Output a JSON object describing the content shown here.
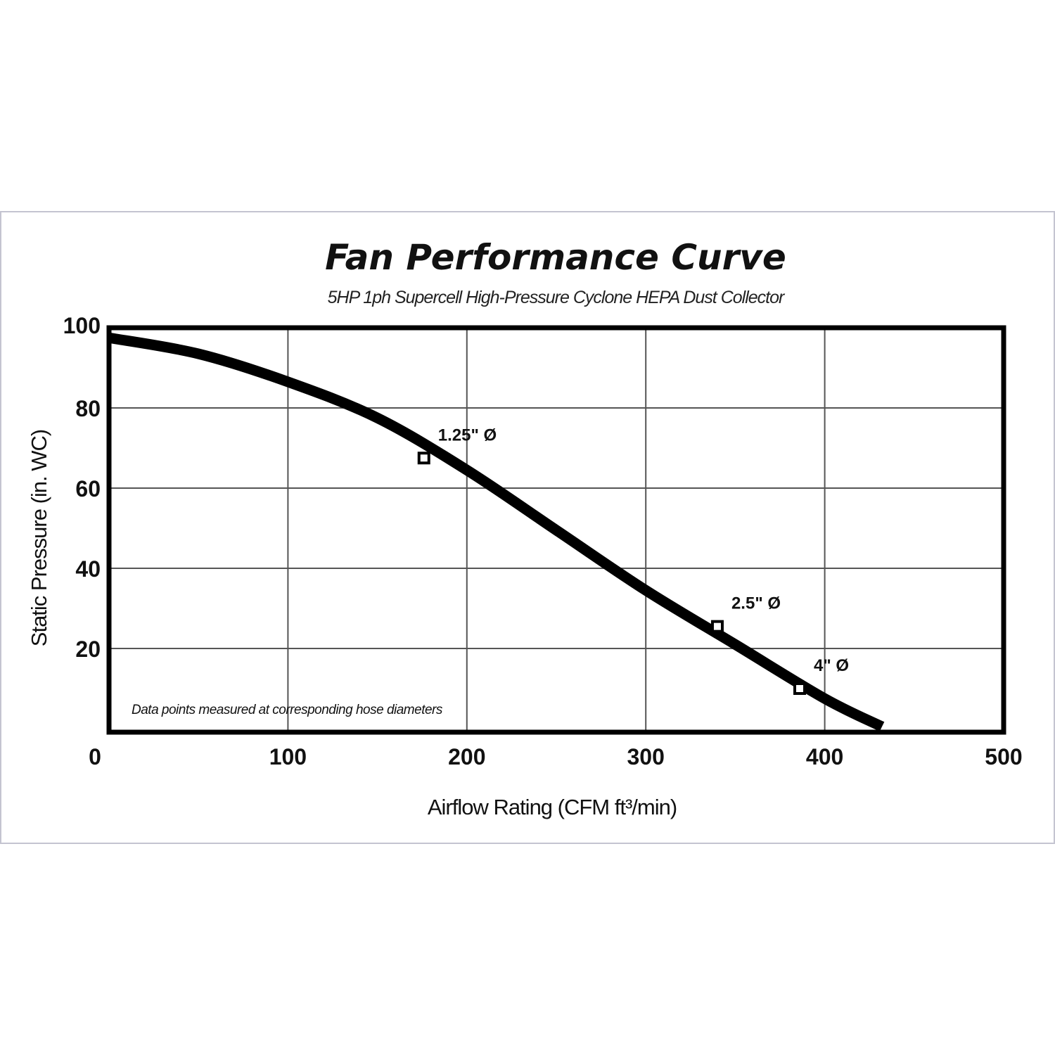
{
  "chart_data": {
    "type": "line",
    "title": "Fan Performance Curve",
    "subtitle": "5HP 1ph Supercell High-Pressure Cyclone HEPA Dust Collector",
    "xlabel": "Airflow Rating (CFM ft³/min)",
    "ylabel": "Static Pressure (in. WC)",
    "xlim": [
      0,
      500
    ],
    "ylim": [
      0,
      100
    ],
    "x_ticks": [
      "0",
      "100",
      "200",
      "300",
      "400",
      "500"
    ],
    "y_ticks": [
      "20",
      "40",
      "60",
      "80",
      "100"
    ],
    "grid": true,
    "annotation": "Data points measured at corresponding hose diameters",
    "series": [
      {
        "x": [
          0,
          50,
          100,
          150,
          200,
          250,
          300,
          350,
          400,
          432
        ],
        "y": [
          97.5,
          93.5,
          86.5,
          77.5,
          64.5,
          49.5,
          34.5,
          21,
          7.5,
          0.5
        ]
      }
    ],
    "points": [
      {
        "label": "1.25\" Ø",
        "x": 176,
        "y": 67.5
      },
      {
        "label": "2.5\" Ø",
        "x": 340,
        "y": 25.5
      },
      {
        "label": "4\" Ø",
        "x": 386,
        "y": 10
      }
    ],
    "colors": {
      "line": "#000000",
      "grid": "#555555",
      "frame": "#c4c4d0"
    }
  }
}
